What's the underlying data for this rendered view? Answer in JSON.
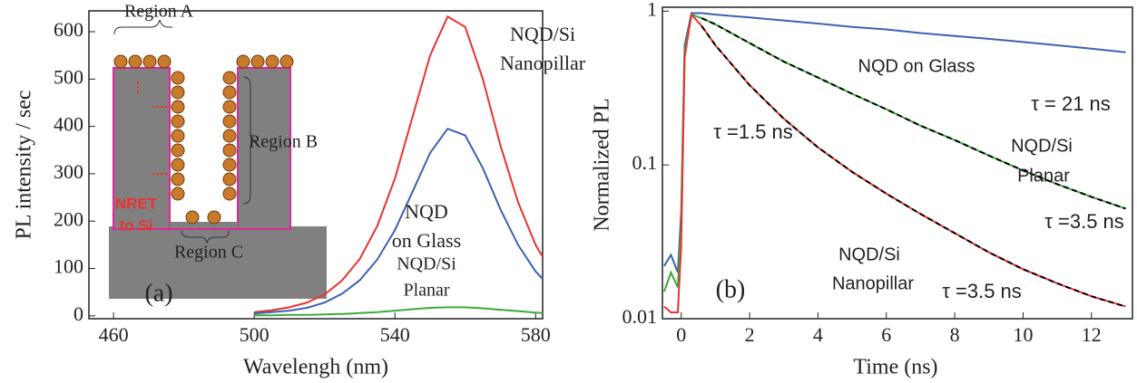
{
  "chart_data": [
    {
      "type": "line",
      "x_label": "Wavelengh (nm)",
      "y_label": "PL intensity / sec",
      "xlim": [
        453,
        582
      ],
      "ylim": [
        -6,
        644
      ],
      "xticks": [
        460,
        500,
        540,
        580
      ],
      "yticks": [
        0,
        100,
        200,
        300,
        400,
        500,
        600
      ],
      "x": [
        500,
        505,
        510,
        515,
        520,
        525,
        530,
        535,
        540,
        545,
        550,
        555,
        560,
        565,
        570,
        575,
        580,
        582
      ],
      "series": [
        {
          "color": "#e8332e",
          "values": [
            8,
            12,
            18,
            28,
            45,
            75,
            120,
            190,
            290,
            420,
            550,
            632,
            610,
            500,
            360,
            240,
            150,
            125
          ]
        },
        {
          "color": "#3d62b0",
          "values": [
            5,
            8,
            11,
            17,
            28,
            47,
            75,
            119,
            181,
            262,
            344,
            395,
            381,
            312,
            225,
            150,
            94,
            78
          ]
        },
        {
          "color": "#3aab3a",
          "values": [
            1,
            1,
            2,
            2,
            3,
            4,
            6,
            8,
            11,
            14,
            17,
            18,
            18,
            16,
            13,
            10,
            7,
            6
          ]
        }
      ],
      "annotations": [
        "NQD/Si",
        "Nanopillar",
        "NQD",
        "on Glass",
        "NQD/Si",
        "Planar",
        "(a)",
        "Region A",
        "Region B",
        "Region C",
        "NRET",
        "to Si"
      ]
    },
    {
      "type": "line",
      "x_label": "Time (ns)",
      "y_label": "Normalized PL",
      "log_y": true,
      "xlim": [
        -0.55,
        13.2
      ],
      "ylim": [
        0.01,
        1.06
      ],
      "xticks": [
        0,
        2,
        4,
        6,
        8,
        10,
        12
      ],
      "yticks": [
        0.01,
        0.1,
        1
      ],
      "x": [
        -0.5,
        -0.3,
        -0.1,
        0,
        0.1,
        0.3,
        0.6,
        1,
        2,
        3,
        4,
        5,
        6,
        7,
        8,
        9,
        10,
        11,
        12,
        13
      ],
      "series": [
        {
          "color": "#3d62b0",
          "values": [
            0.022,
            0.026,
            0.02,
            0.05,
            0.6,
            0.97,
            0.97,
            0.95,
            0.91,
            0.87,
            0.83,
            0.79,
            0.76,
            0.72,
            0.69,
            0.66,
            0.63,
            0.6,
            0.57,
            0.54
          ]
        },
        {
          "color": "#3aab3a",
          "values": [
            0.015,
            0.02,
            0.016,
            0.04,
            0.55,
            0.95,
            0.9,
            0.82,
            0.62,
            0.47,
            0.37,
            0.29,
            0.23,
            0.18,
            0.145,
            0.115,
            0.092,
            0.075,
            0.062,
            0.052
          ]
        },
        {
          "color": "#e8332e",
          "values": [
            0.012,
            0.011,
            0.011,
            0.03,
            0.5,
            0.95,
            0.8,
            0.6,
            0.33,
            0.2,
            0.13,
            0.09,
            0.065,
            0.048,
            0.036,
            0.027,
            0.021,
            0.017,
            0.014,
            0.012
          ]
        },
        {
          "color": "#000000",
          "dashed": true,
          "values": [
            null,
            null,
            null,
            null,
            null,
            null,
            0.9,
            0.82,
            0.62,
            0.47,
            0.37,
            0.29,
            0.23,
            0.18,
            0.145,
            0.115,
            0.092,
            0.075,
            0.062,
            0.052
          ]
        },
        {
          "color": "#000000",
          "dashed": true,
          "values": [
            null,
            null,
            null,
            null,
            null,
            null,
            0.8,
            0.6,
            0.33,
            0.2,
            0.13,
            0.09,
            0.065,
            0.048,
            0.036,
            0.027,
            0.021,
            0.017,
            0.014,
            0.012
          ]
        }
      ],
      "annotations": [
        "NQD on Glass",
        "τ = 21 ns",
        "NQD/Si",
        "Planar",
        "τ =3.5 ns",
        "τ =1.5 ns",
        "NQD/Si",
        "Nanopillar",
        "τ =3.5 ns",
        "(b)"
      ]
    }
  ]
}
